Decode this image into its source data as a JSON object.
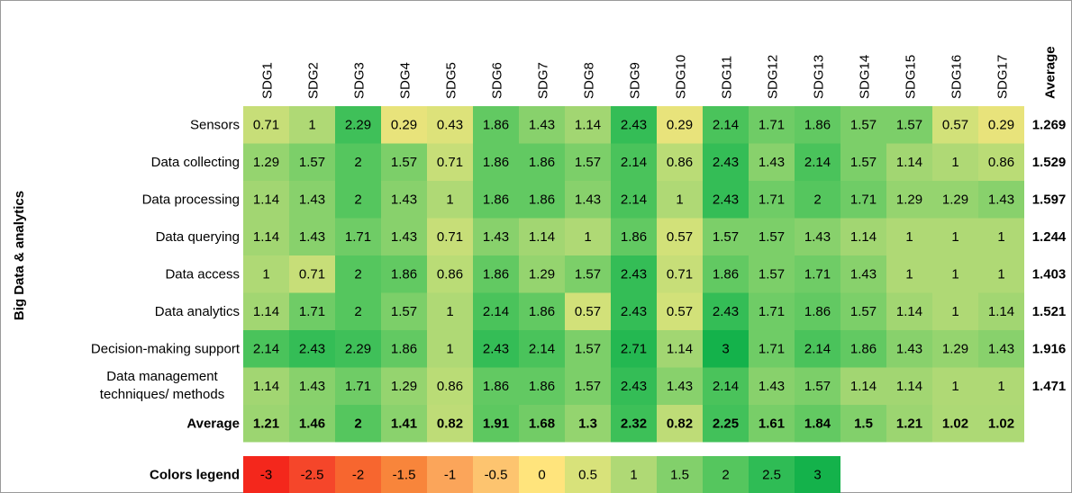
{
  "chart_data": {
    "type": "heatmap",
    "y_label": "Big Data & analytics",
    "columns": [
      "SDG1",
      "SDG2",
      "SDG3",
      "SDG4",
      "SDG5",
      "SDG6",
      "SDG7",
      "SDG8",
      "SDG9",
      "SDG10",
      "SDG11",
      "SDG12",
      "SDG13",
      "SDG14",
      "SDG15",
      "SDG16",
      "SDG17"
    ],
    "average_label": "Average",
    "rows": [
      {
        "name": "Sensors",
        "values": [
          0.71,
          1,
          2.29,
          0.29,
          0.43,
          1.86,
          1.43,
          1.14,
          2.43,
          0.29,
          2.14,
          1.71,
          1.86,
          1.57,
          1.57,
          0.57,
          0.29
        ],
        "average": 1.269
      },
      {
        "name": "Data collecting",
        "values": [
          1.29,
          1.57,
          2,
          1.57,
          0.71,
          1.86,
          1.86,
          1.57,
          2.14,
          0.86,
          2.43,
          1.43,
          2.14,
          1.57,
          1.14,
          1,
          0.86
        ],
        "average": 1.529
      },
      {
        "name": "Data processing",
        "values": [
          1.14,
          1.43,
          2,
          1.43,
          1,
          1.86,
          1.86,
          1.43,
          2.14,
          1,
          2.43,
          1.71,
          2,
          1.71,
          1.29,
          1.29,
          1.43
        ],
        "average": 1.597
      },
      {
        "name": "Data querying",
        "values": [
          1.14,
          1.43,
          1.71,
          1.43,
          0.71,
          1.43,
          1.14,
          1,
          1.86,
          0.57,
          1.57,
          1.57,
          1.43,
          1.14,
          1,
          1,
          1
        ],
        "average": 1.244
      },
      {
        "name": "Data access",
        "values": [
          1,
          0.71,
          2,
          1.86,
          0.86,
          1.86,
          1.29,
          1.57,
          2.43,
          0.71,
          1.86,
          1.57,
          1.71,
          1.43,
          1,
          1,
          1
        ],
        "average": 1.403
      },
      {
        "name": "Data analytics",
        "values": [
          1.14,
          1.71,
          2,
          1.57,
          1,
          2.14,
          1.86,
          0.57,
          2.43,
          0.57,
          2.43,
          1.71,
          1.86,
          1.57,
          1.14,
          1,
          1.14
        ],
        "average": 1.521
      },
      {
        "name": "Decision-making support",
        "values": [
          2.14,
          2.43,
          2.29,
          1.86,
          1,
          2.43,
          2.14,
          1.57,
          2.71,
          1.14,
          3,
          1.71,
          2.14,
          1.86,
          1.43,
          1.29,
          1.43
        ],
        "average": 1.916
      },
      {
        "name": [
          "Data management",
          "techniques/ methods"
        ],
        "values": [
          1.14,
          1.43,
          1.71,
          1.29,
          0.86,
          1.86,
          1.86,
          1.57,
          2.43,
          1.43,
          2.14,
          1.43,
          1.57,
          1.14,
          1.14,
          1,
          1
        ],
        "average": 1.471
      }
    ],
    "column_averages": [
      1.21,
      1.46,
      2,
      1.41,
      0.82,
      1.91,
      1.68,
      1.3,
      2.32,
      0.82,
      2.25,
      1.61,
      1.84,
      1.5,
      1.21,
      1.02,
      1.02
    ],
    "legend": {
      "title": "Colors legend",
      "values": [
        -3,
        -2.5,
        -2,
        -1.5,
        -1,
        -0.5,
        0,
        0.5,
        1,
        1.5,
        2,
        2.5,
        3
      ],
      "colors": [
        "#f4271c",
        "#f5462a",
        "#f7662f",
        "#f8853b",
        "#fba55a",
        "#fdc46f",
        "#ffe47c",
        "#d8e27a",
        "#afd975",
        "#82d06b",
        "#55c65e",
        "#2fbc55",
        "#14b24b"
      ]
    }
  }
}
